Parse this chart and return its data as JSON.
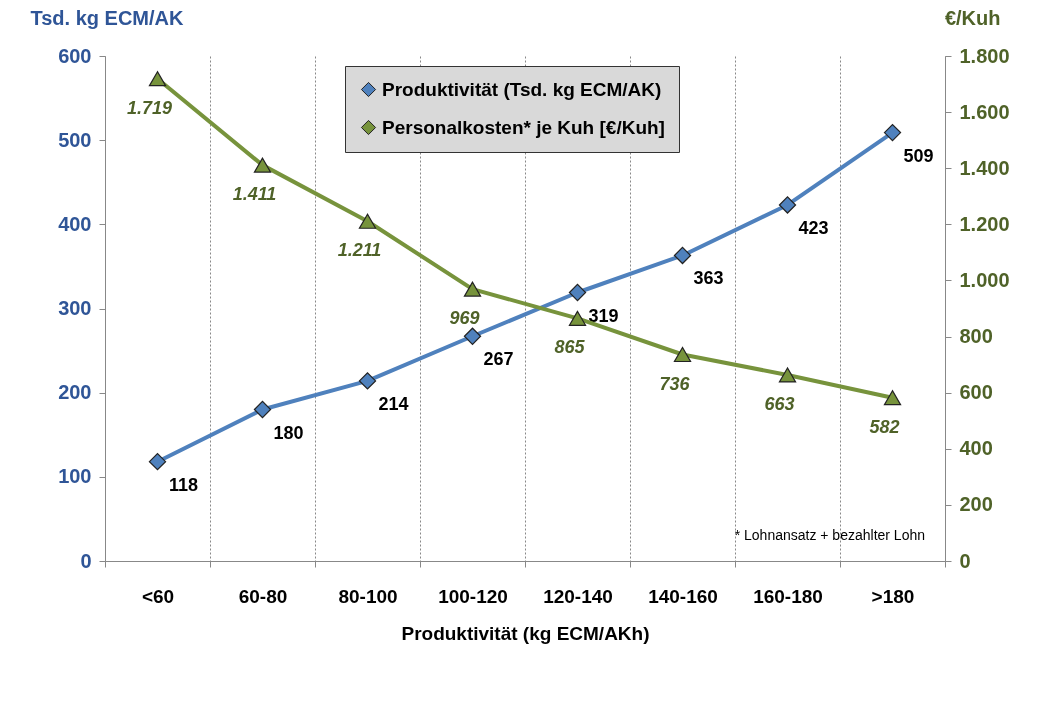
{
  "chart_data": {
    "type": "line",
    "xlabel": "Produktivität (kg ECM/AKh)",
    "ylabel": "Tsd. kg ECM/AK",
    "y2label": "€/Kuh",
    "categories": [
      "<60",
      "60-80",
      "80-100",
      "100-120",
      "120-140",
      "140-160",
      "160-180",
      ">180"
    ],
    "series": [
      {
        "name": "Produktivität (Tsd. kg ECM/AK)",
        "color": "#4f81bd",
        "marker": "diamond",
        "values": [
          118,
          180,
          214,
          267,
          319,
          363,
          423,
          509
        ],
        "value_labels": [
          "118",
          "180",
          "214",
          "267",
          "319",
          "363",
          "423",
          "509"
        ]
      },
      {
        "name": "Personalkosten* je Kuh [€/Kuh]",
        "color": "#77933c",
        "marker": "triangle",
        "axis": "y2",
        "values": [
          1719,
          1411,
          1211,
          969,
          865,
          736,
          663,
          582
        ],
        "value_labels": [
          "1.719",
          "1.411",
          "1.211",
          "969",
          "865",
          "736",
          "663",
          "582"
        ]
      }
    ],
    "ylim": [
      0,
      600
    ],
    "yticks": [
      0,
      100,
      200,
      300,
      400,
      500,
      600
    ],
    "y2lim": [
      0,
      1800
    ],
    "y2ticks": [
      0,
      200,
      400,
      600,
      800,
      {
        "value": 1000,
        "label": "1.000"
      },
      {
        "value": 1200,
        "label": "1.200"
      },
      {
        "value": 1400,
        "label": "1.400"
      },
      {
        "value": 1600,
        "label": "1.600"
      },
      {
        "value": 1800,
        "label": "1.800"
      }
    ],
    "grid": "x",
    "legend": "top",
    "line_style": "solid",
    "annotations": [
      "* Lohnansatz + bezahlter Lohn"
    ]
  }
}
